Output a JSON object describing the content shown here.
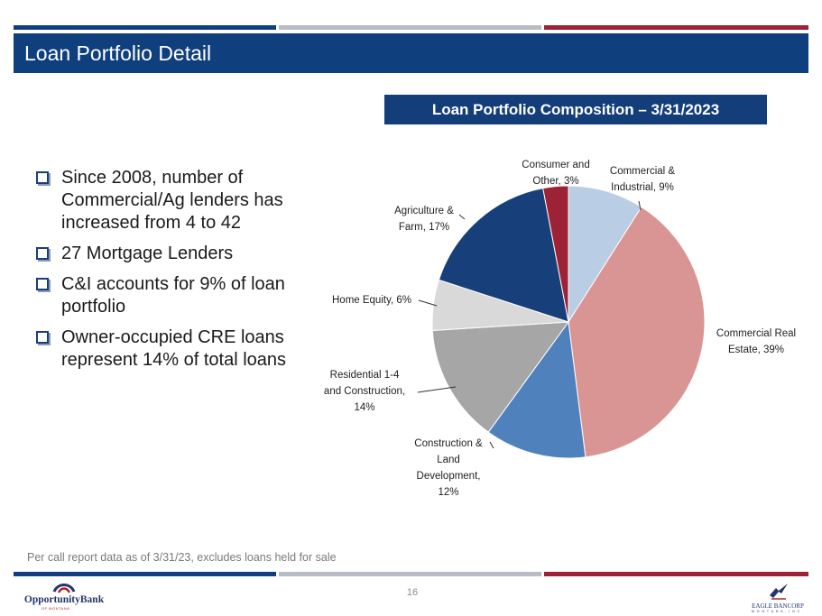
{
  "colors": {
    "navy": "#0f3f7d",
    "gray_bar": "#b9bcc6",
    "red_bar": "#9d2235",
    "title_box": "#133e79"
  },
  "slide": {
    "title": "Loan Portfolio Detail",
    "page_number": "16"
  },
  "bullets": [
    "Since 2008, number of Commercial/Ag lenders has increased from 4 to 42",
    "27 Mortgage Lenders",
    "C&I accounts for 9% of loan portfolio",
    "Owner-occupied CRE loans represent 14% of total loans"
  ],
  "footnote": "Per call report data as of 3/31/23, excludes loans held for sale",
  "logos": {
    "left_name": "OpportunityBank",
    "left_sub": "OF MONTANA",
    "right_name": "EAGLE BANCORP",
    "right_sub": "M O N T A N A , I N C ."
  },
  "chart_data": {
    "type": "pie",
    "title": "Loan Portfolio Composition – 3/31/2023",
    "start": "12 o'clock, clockwise",
    "slices": [
      {
        "name": "Commercial & Industrial",
        "value": 9,
        "label_lines": [
          "Commercial &",
          "Industrial, 9%"
        ],
        "color": "#b9cde5"
      },
      {
        "name": "Commercial Real Estate",
        "value": 39,
        "label_lines": [
          "Commercial Real",
          "Estate, 39%"
        ],
        "color": "#d99594"
      },
      {
        "name": "Construction & Land Development",
        "value": 12,
        "label_lines": [
          "Construction &",
          "Land",
          "Development,",
          "12%"
        ],
        "color": "#4f81bd"
      },
      {
        "name": "Residential 1-4 and Construction",
        "value": 14,
        "label_lines": [
          "Residential 1-4",
          "and Construction,",
          "14%"
        ],
        "color": "#a6a6a6"
      },
      {
        "name": "Home Equity",
        "value": 6,
        "label_lines": [
          "Home Equity, 6%"
        ],
        "color": "#d9d9d9"
      },
      {
        "name": "Agriculture & Farm",
        "value": 17,
        "label_lines": [
          "Agriculture &",
          "Farm, 17%"
        ],
        "color": "#17407a"
      },
      {
        "name": "Consumer and Other",
        "value": 3,
        "label_lines": [
          "Consumer and",
          "Other, 3%"
        ],
        "color": "#9d2235"
      }
    ]
  }
}
